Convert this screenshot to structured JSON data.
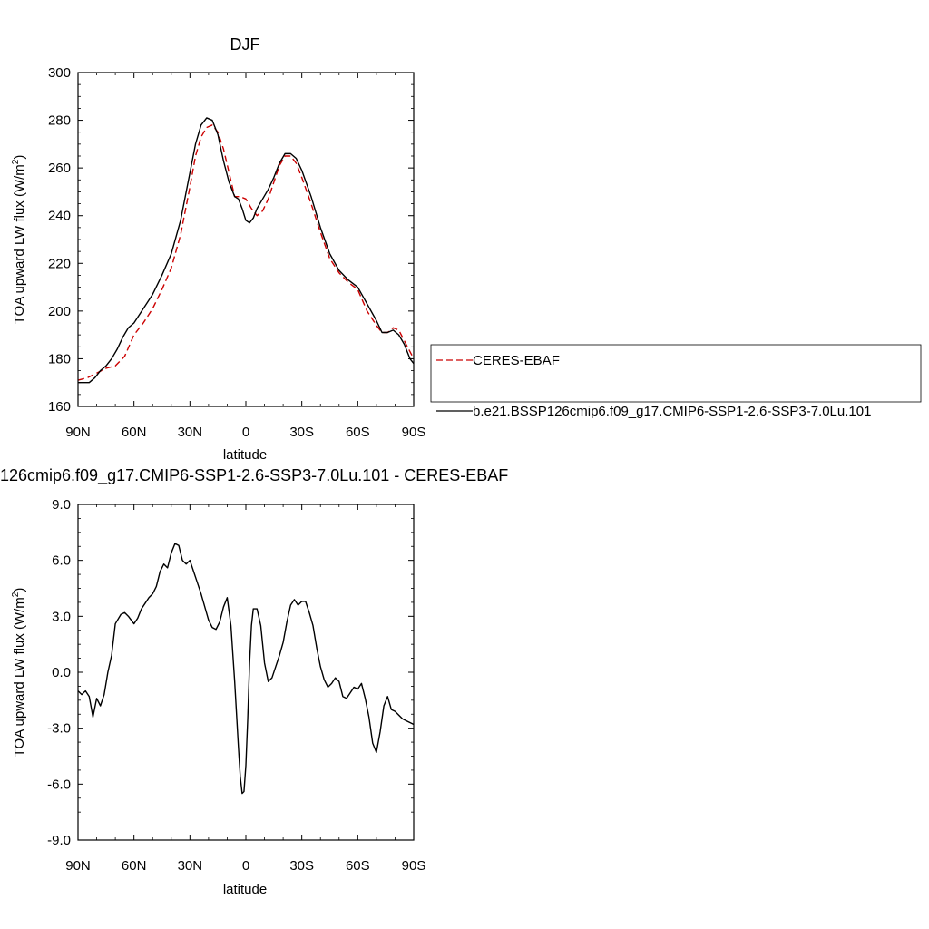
{
  "chart_data": [
    {
      "type": "line",
      "title": "DJF",
      "xlabel": "latitude",
      "ylabel": "TOA upward LW flux (W/m",
      "ylabel_sup": "2",
      "ylabel_close": ")",
      "xlim": [
        90,
        -90
      ],
      "ylim": [
        160,
        300
      ],
      "x_ticks": [
        90,
        60,
        30,
        0,
        -30,
        -60,
        -90
      ],
      "x_tick_labels": [
        "90N",
        "60N",
        "30N",
        "0",
        "30S",
        "60S",
        "90S"
      ],
      "y_ticks": [
        160,
        180,
        200,
        220,
        240,
        260,
        280,
        300
      ],
      "y_tick_labels": [
        "160",
        "180",
        "200",
        "220",
        "240",
        "260",
        "280",
        "300"
      ],
      "grid": false,
      "legend_position": "right",
      "series": [
        {
          "name": "CERES-EBAF",
          "color": "#cc0000",
          "dash": true,
          "x": [
            90,
            85,
            80,
            75,
            70,
            65,
            60,
            55,
            50,
            45,
            40,
            35,
            30,
            27,
            24,
            21,
            18,
            15,
            12,
            9,
            6,
            3,
            0,
            -3,
            -6,
            -9,
            -12,
            -15,
            -18,
            -21,
            -24,
            -27,
            -30,
            -35,
            -40,
            -45,
            -50,
            -55,
            -60,
            -65,
            -70,
            -73,
            -76,
            -79,
            -82,
            -84,
            -86,
            -88,
            -90
          ],
          "y": [
            171,
            172,
            174,
            176,
            177,
            181,
            190,
            195,
            201,
            209,
            218,
            232,
            252,
            265,
            273,
            277,
            278,
            275,
            268,
            258,
            248,
            248,
            247,
            243,
            240,
            242,
            247,
            254,
            261,
            265,
            265,
            262,
            256,
            245,
            233,
            222,
            216,
            212,
            209,
            200,
            194,
            191,
            191,
            193,
            192,
            189,
            186,
            183,
            180
          ]
        },
        {
          "name": "b.e21.BSSP126cmip6.f09_g17.CMIP6-SSP1-2.6-SSP3-7.0Lu.101",
          "color": "#000000",
          "dash": false,
          "x": [
            90,
            87,
            84,
            81,
            78,
            75,
            72,
            69,
            66,
            63,
            60,
            55,
            50,
            45,
            40,
            35,
            30,
            27,
            24,
            21,
            18,
            15,
            12,
            9,
            6,
            4,
            2,
            0,
            -2,
            -4,
            -6,
            -9,
            -12,
            -15,
            -18,
            -21,
            -24,
            -27,
            -30,
            -35,
            -40,
            -45,
            -50,
            -55,
            -60,
            -65,
            -70,
            -73,
            -76,
            -79,
            -82,
            -85,
            -88,
            -90
          ],
          "y": [
            170,
            170,
            170,
            172,
            175,
            177,
            180,
            184,
            189,
            193,
            195,
            201,
            207,
            215,
            224,
            238,
            258,
            270,
            278,
            281,
            280,
            274,
            263,
            254,
            248,
            247,
            243,
            238,
            237,
            239,
            243,
            247,
            251,
            256,
            262,
            266,
            266,
            264,
            259,
            248,
            235,
            224,
            217,
            213,
            210,
            203,
            196,
            191,
            191,
            192,
            190,
            186,
            180,
            178
          ]
        }
      ]
    },
    {
      "type": "line",
      "title": "126cmip6.f09_g17.CMIP6-SSP1-2.6-SSP3-7.0Lu.101 - CERES-EBAF",
      "xlabel": "latitude",
      "ylabel": "TOA upward LW flux (W/m",
      "ylabel_sup": "2",
      "ylabel_close": ")",
      "xlim": [
        90,
        -90
      ],
      "ylim": [
        -9.0,
        9.0
      ],
      "x_ticks": [
        90,
        60,
        30,
        0,
        -30,
        -60,
        -90
      ],
      "x_tick_labels": [
        "90N",
        "60N",
        "30N",
        "0",
        "30S",
        "60S",
        "90S"
      ],
      "y_ticks": [
        -9,
        -6,
        -3,
        0,
        3,
        6,
        9
      ],
      "y_tick_labels": [
        "-9.0",
        "-6.0",
        "-3.0",
        "0.0",
        "3.0",
        "6.0",
        "9.0"
      ],
      "grid": false,
      "series": [
        {
          "name": "",
          "color": "#000000",
          "dash": false,
          "x": [
            90,
            88,
            86,
            84,
            82,
            80,
            78,
            76,
            74,
            72,
            70,
            67,
            65,
            63,
            60,
            58,
            56,
            54,
            52,
            50,
            48,
            46,
            44,
            42,
            40,
            38,
            36,
            34,
            32,
            30,
            28,
            26,
            24,
            22,
            20,
            18,
            16,
            14,
            12,
            10,
            8,
            6,
            4,
            3,
            2,
            1,
            0,
            -1,
            -2,
            -3,
            -4,
            -6,
            -8,
            -10,
            -12,
            -14,
            -16,
            -18,
            -20,
            -22,
            -24,
            -26,
            -28,
            -30,
            -32,
            -34,
            -36,
            -38,
            -40,
            -42,
            -44,
            -46,
            -48,
            -50,
            -52,
            -54,
            -56,
            -58,
            -60,
            -62,
            -64,
            -66,
            -68,
            -70,
            -72,
            -74,
            -76,
            -78,
            -80,
            -82,
            -84,
            -86,
            -88,
            -90
          ],
          "y": [
            -1.0,
            -1.2,
            -1.0,
            -1.3,
            -2.4,
            -1.4,
            -1.8,
            -1.2,
            0.0,
            0.9,
            2.6,
            3.1,
            3.2,
            3.0,
            2.6,
            2.9,
            3.4,
            3.7,
            4.0,
            4.2,
            4.6,
            5.4,
            5.8,
            5.6,
            6.4,
            6.9,
            6.8,
            6.0,
            5.8,
            6.0,
            5.4,
            4.8,
            4.2,
            3.5,
            2.8,
            2.4,
            2.3,
            2.7,
            3.5,
            4.0,
            2.5,
            -0.5,
            -4.0,
            -5.6,
            -6.5,
            -6.4,
            -5.0,
            -2.5,
            0.5,
            2.5,
            3.4,
            3.4,
            2.5,
            0.5,
            -0.5,
            -0.3,
            0.3,
            0.9,
            1.6,
            2.7,
            3.6,
            3.9,
            3.6,
            3.8,
            3.8,
            3.2,
            2.5,
            1.3,
            0.3,
            -0.4,
            -0.8,
            -0.6,
            -0.3,
            -0.5,
            -1.3,
            -1.4,
            -1.1,
            -0.8,
            -0.9,
            -0.6,
            -1.4,
            -2.4,
            -3.8,
            -4.3,
            -3.2,
            -1.8,
            -1.3,
            -2.0,
            -2.1,
            -2.3,
            -2.5,
            -2.6,
            -2.7,
            -2.8
          ]
        }
      ]
    }
  ]
}
